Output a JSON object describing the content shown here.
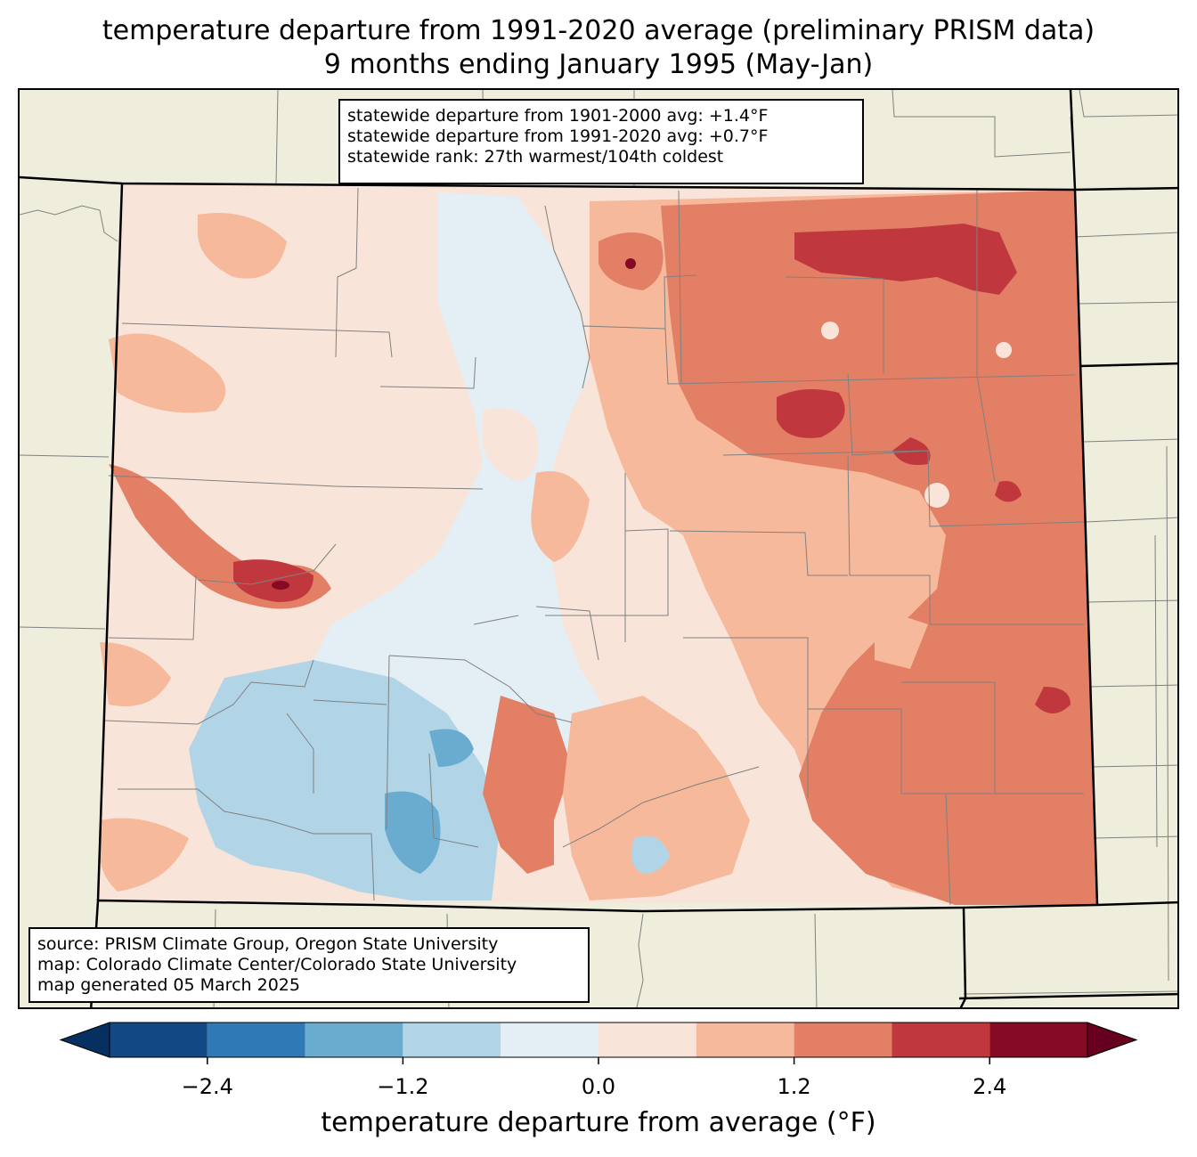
{
  "title": {
    "line1": "temperature departure from 1991-2020 average (preliminary PRISM data)",
    "line2": "9 months ending January 1995 (May-Jan)"
  },
  "stats": {
    "line1": "statewide departure from 1901-2000 avg: +1.4°F",
    "line2": "statewide departure from 1991-2020 avg: +0.7°F",
    "line3": "statewide rank: 27th warmest/104th coldest"
  },
  "source": {
    "line1": "source: PRISM Climate Group, Oregon State University",
    "line2": "map: Colorado Climate Center/Colorado State University",
    "line3": "map generated 05 March 2025"
  },
  "colorbar": {
    "label": "temperature departure from average (°F)",
    "ticks": [
      "−2.4",
      "−1.2",
      "0.0",
      "1.2",
      "2.4"
    ],
    "tick_values": [
      -2.4,
      -1.2,
      0.0,
      1.2,
      2.4
    ],
    "bins": [
      {
        "from": -3.0,
        "to": -2.4,
        "color": "#124984"
      },
      {
        "from": -2.4,
        "to": -1.8,
        "color": "#2f79b5"
      },
      {
        "from": -1.8,
        "to": -1.2,
        "color": "#6aacd0"
      },
      {
        "from": -1.2,
        "to": -0.6,
        "color": "#b1d5e7"
      },
      {
        "from": -0.6,
        "to": 0.0,
        "color": "#e4eef5"
      },
      {
        "from": 0.0,
        "to": 0.6,
        "color": "#f9e4d9"
      },
      {
        "from": 0.6,
        "to": 1.2,
        "color": "#f6b99c"
      },
      {
        "from": 1.2,
        "to": 1.8,
        "color": "#e27f65"
      },
      {
        "from": 1.8,
        "to": 2.4,
        "color": "#c0383d"
      },
      {
        "from": 2.4,
        "to": 3.0,
        "color": "#870a24"
      }
    ],
    "under_color": "#053061",
    "over_color": "#67001f"
  },
  "colors": {
    "land_outside": "#efeedc",
    "county_lines": "#808080",
    "state_lines": "#000000"
  }
}
